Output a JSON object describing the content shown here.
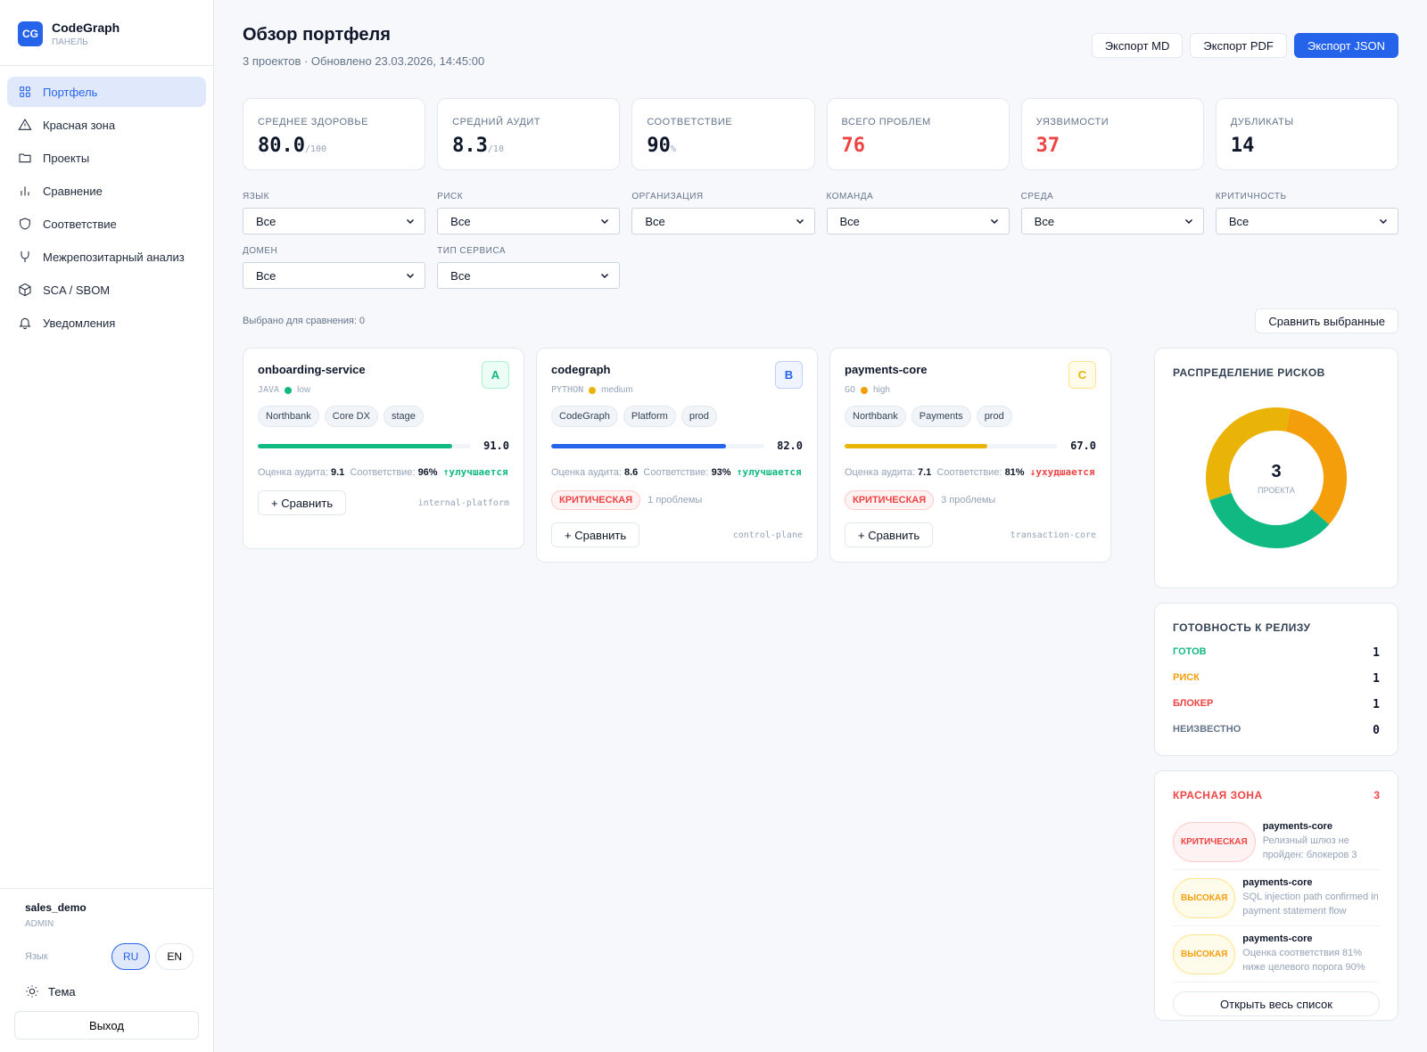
{
  "brand": {
    "logo": "CG",
    "name": "CodeGraph",
    "sub": "ПАНЕЛЬ"
  },
  "nav": [
    {
      "label": "Портфель",
      "icon": "grid-icon",
      "active": true
    },
    {
      "label": "Красная зона",
      "icon": "warning-icon"
    },
    {
      "label": "Проекты",
      "icon": "folder-icon"
    },
    {
      "label": "Сравнение",
      "icon": "bar-chart-icon"
    },
    {
      "label": "Соответствие",
      "icon": "shield-icon"
    },
    {
      "label": "Межрепозитарный анализ",
      "icon": "git-merge-icon"
    },
    {
      "label": "SCA / SBOM",
      "icon": "package-icon"
    },
    {
      "label": "Уведомления",
      "icon": "bell-icon"
    }
  ],
  "user": {
    "name": "sales_demo",
    "role": "ADMIN",
    "lang_label": "Язык",
    "lang_ru": "RU",
    "lang_en": "EN",
    "theme": "Тема",
    "logout": "Выход"
  },
  "header": {
    "title": "Обзор портфеля",
    "subtitle": "3 проектов · Обновлено 23.03.2026, 14:45:00",
    "export_md": "Экспорт MD",
    "export_pdf": "Экспорт PDF",
    "export_json": "Экспорт JSON"
  },
  "kpis": [
    {
      "label": "СРЕДНЕЕ ЗДОРОВЬЕ",
      "value": "80.0",
      "unit": "/100"
    },
    {
      "label": "СРЕДНИЙ АУДИТ",
      "value": "8.3",
      "unit": "/10"
    },
    {
      "label": "СООТВЕТСТВИЕ",
      "value": "90",
      "unit": "%"
    },
    {
      "label": "ВСЕГО ПРОБЛЕМ",
      "value": "76",
      "unit": ""
    },
    {
      "label": "УЯЗВИМОСТИ",
      "value": "37",
      "unit": ""
    },
    {
      "label": "ДУБЛИКАТЫ",
      "value": "14",
      "unit": ""
    }
  ],
  "filters": [
    {
      "label": "ЯЗЫК",
      "value": "Все"
    },
    {
      "label": "РИСК",
      "value": "Все"
    },
    {
      "label": "ОРГАНИЗАЦИЯ",
      "value": "Все"
    },
    {
      "label": "КОМАНДА",
      "value": "Все"
    },
    {
      "label": "СРЕДА",
      "value": "Все"
    },
    {
      "label": "КРИТИЧНОСТЬ",
      "value": "Все"
    },
    {
      "label": "ДОМЕН",
      "value": "Все"
    },
    {
      "label": "ТИП СЕРВИСА",
      "value": "Все"
    }
  ],
  "compare": {
    "selected": "Выбрано для сравнения: 0",
    "button": "Сравнить выбранные"
  },
  "labels": {
    "audit": "Оценка аудита:",
    "compliance": "Соответствие:",
    "compare": "+ Сравнить"
  },
  "projects": [
    {
      "name": "onboarding-service",
      "grade": "A",
      "lang": "JAVA",
      "risk": "low",
      "tags": [
        "Northbank",
        "Core DX",
        "stage"
      ],
      "score": "91.0",
      "audit": "9.1",
      "compliance": "96%",
      "trend": "↑улучшается",
      "trend_dir": "up",
      "severity": "",
      "issues": "",
      "domain": "internal-platform",
      "color": "#10b981",
      "grade_bg": "#ecfdf5",
      "grade_border": "#a7f3d0",
      "grade_color": "#10b981"
    },
    {
      "name": "codegraph",
      "grade": "B",
      "lang": "PYTHON",
      "risk": "medium",
      "tags": [
        "CodeGraph",
        "Platform",
        "prod"
      ],
      "score": "82.0",
      "audit": "8.6",
      "compliance": "93%",
      "trend": "↑улучшается",
      "trend_dir": "up",
      "severity": "КРИТИЧЕСКАЯ",
      "issues": "1 проблемы",
      "domain": "control-plane",
      "color": "#2563eb",
      "dot": "#eab308",
      "grade_bg": "#eff4ff",
      "grade_border": "#bfd0fb",
      "grade_color": "#2563eb"
    },
    {
      "name": "payments-core",
      "grade": "C",
      "lang": "GO",
      "risk": "high",
      "tags": [
        "Northbank",
        "Payments",
        "prod"
      ],
      "score": "67.0",
      "audit": "7.1",
      "compliance": "81%",
      "trend": "↓ухудшается",
      "trend_dir": "down",
      "severity": "КРИТИЧЕСКАЯ",
      "issues": "3 проблемы",
      "domain": "transaction-core",
      "color": "#eab308",
      "dot": "#f59e0b",
      "grade_bg": "#fffbeb",
      "grade_border": "#fde68a",
      "grade_color": "#eab308"
    }
  ],
  "risk_dist": {
    "title": "РАСПРЕДЕЛЕНИЕ РИСКОВ",
    "total": "3",
    "total_label": "ПРОЕКТА",
    "segments": [
      {
        "risk": "high",
        "count": 1,
        "color": "#f59e0b"
      },
      {
        "risk": "low",
        "count": 1,
        "color": "#10b981"
      },
      {
        "risk": "medium",
        "count": 1,
        "color": "#eab308"
      }
    ]
  },
  "release": {
    "title": "ГОТОВНОСТЬ К РЕЛИЗУ",
    "rows": [
      {
        "label": "ГОТОВ",
        "count": "1",
        "color": "#10b981"
      },
      {
        "label": "РИСК",
        "count": "1",
        "color": "#f59e0b"
      },
      {
        "label": "БЛОКЕР",
        "count": "1",
        "color": "#ef4444"
      },
      {
        "label": "НЕИЗВЕСТНО",
        "count": "0",
        "color": "#64748b"
      }
    ]
  },
  "redzone": {
    "title": "КРАСНАЯ ЗОНА",
    "count": "3",
    "open_all": "Открыть весь список",
    "items": [
      {
        "severity": "КРИТИЧЕСКАЯ",
        "level": "crit",
        "project": "payments-core",
        "desc": "Релизный шлюз не пройден: блокеров 3"
      },
      {
        "severity": "ВЫСОКАЯ",
        "level": "high",
        "project": "payments-core",
        "desc": "SQL injection path confirmed in payment statement flow"
      },
      {
        "severity": "ВЫСОКАЯ",
        "level": "high",
        "project": "payments-core",
        "desc": "Оценка соответствия 81% ниже целевого порога 90%"
      }
    ]
  }
}
